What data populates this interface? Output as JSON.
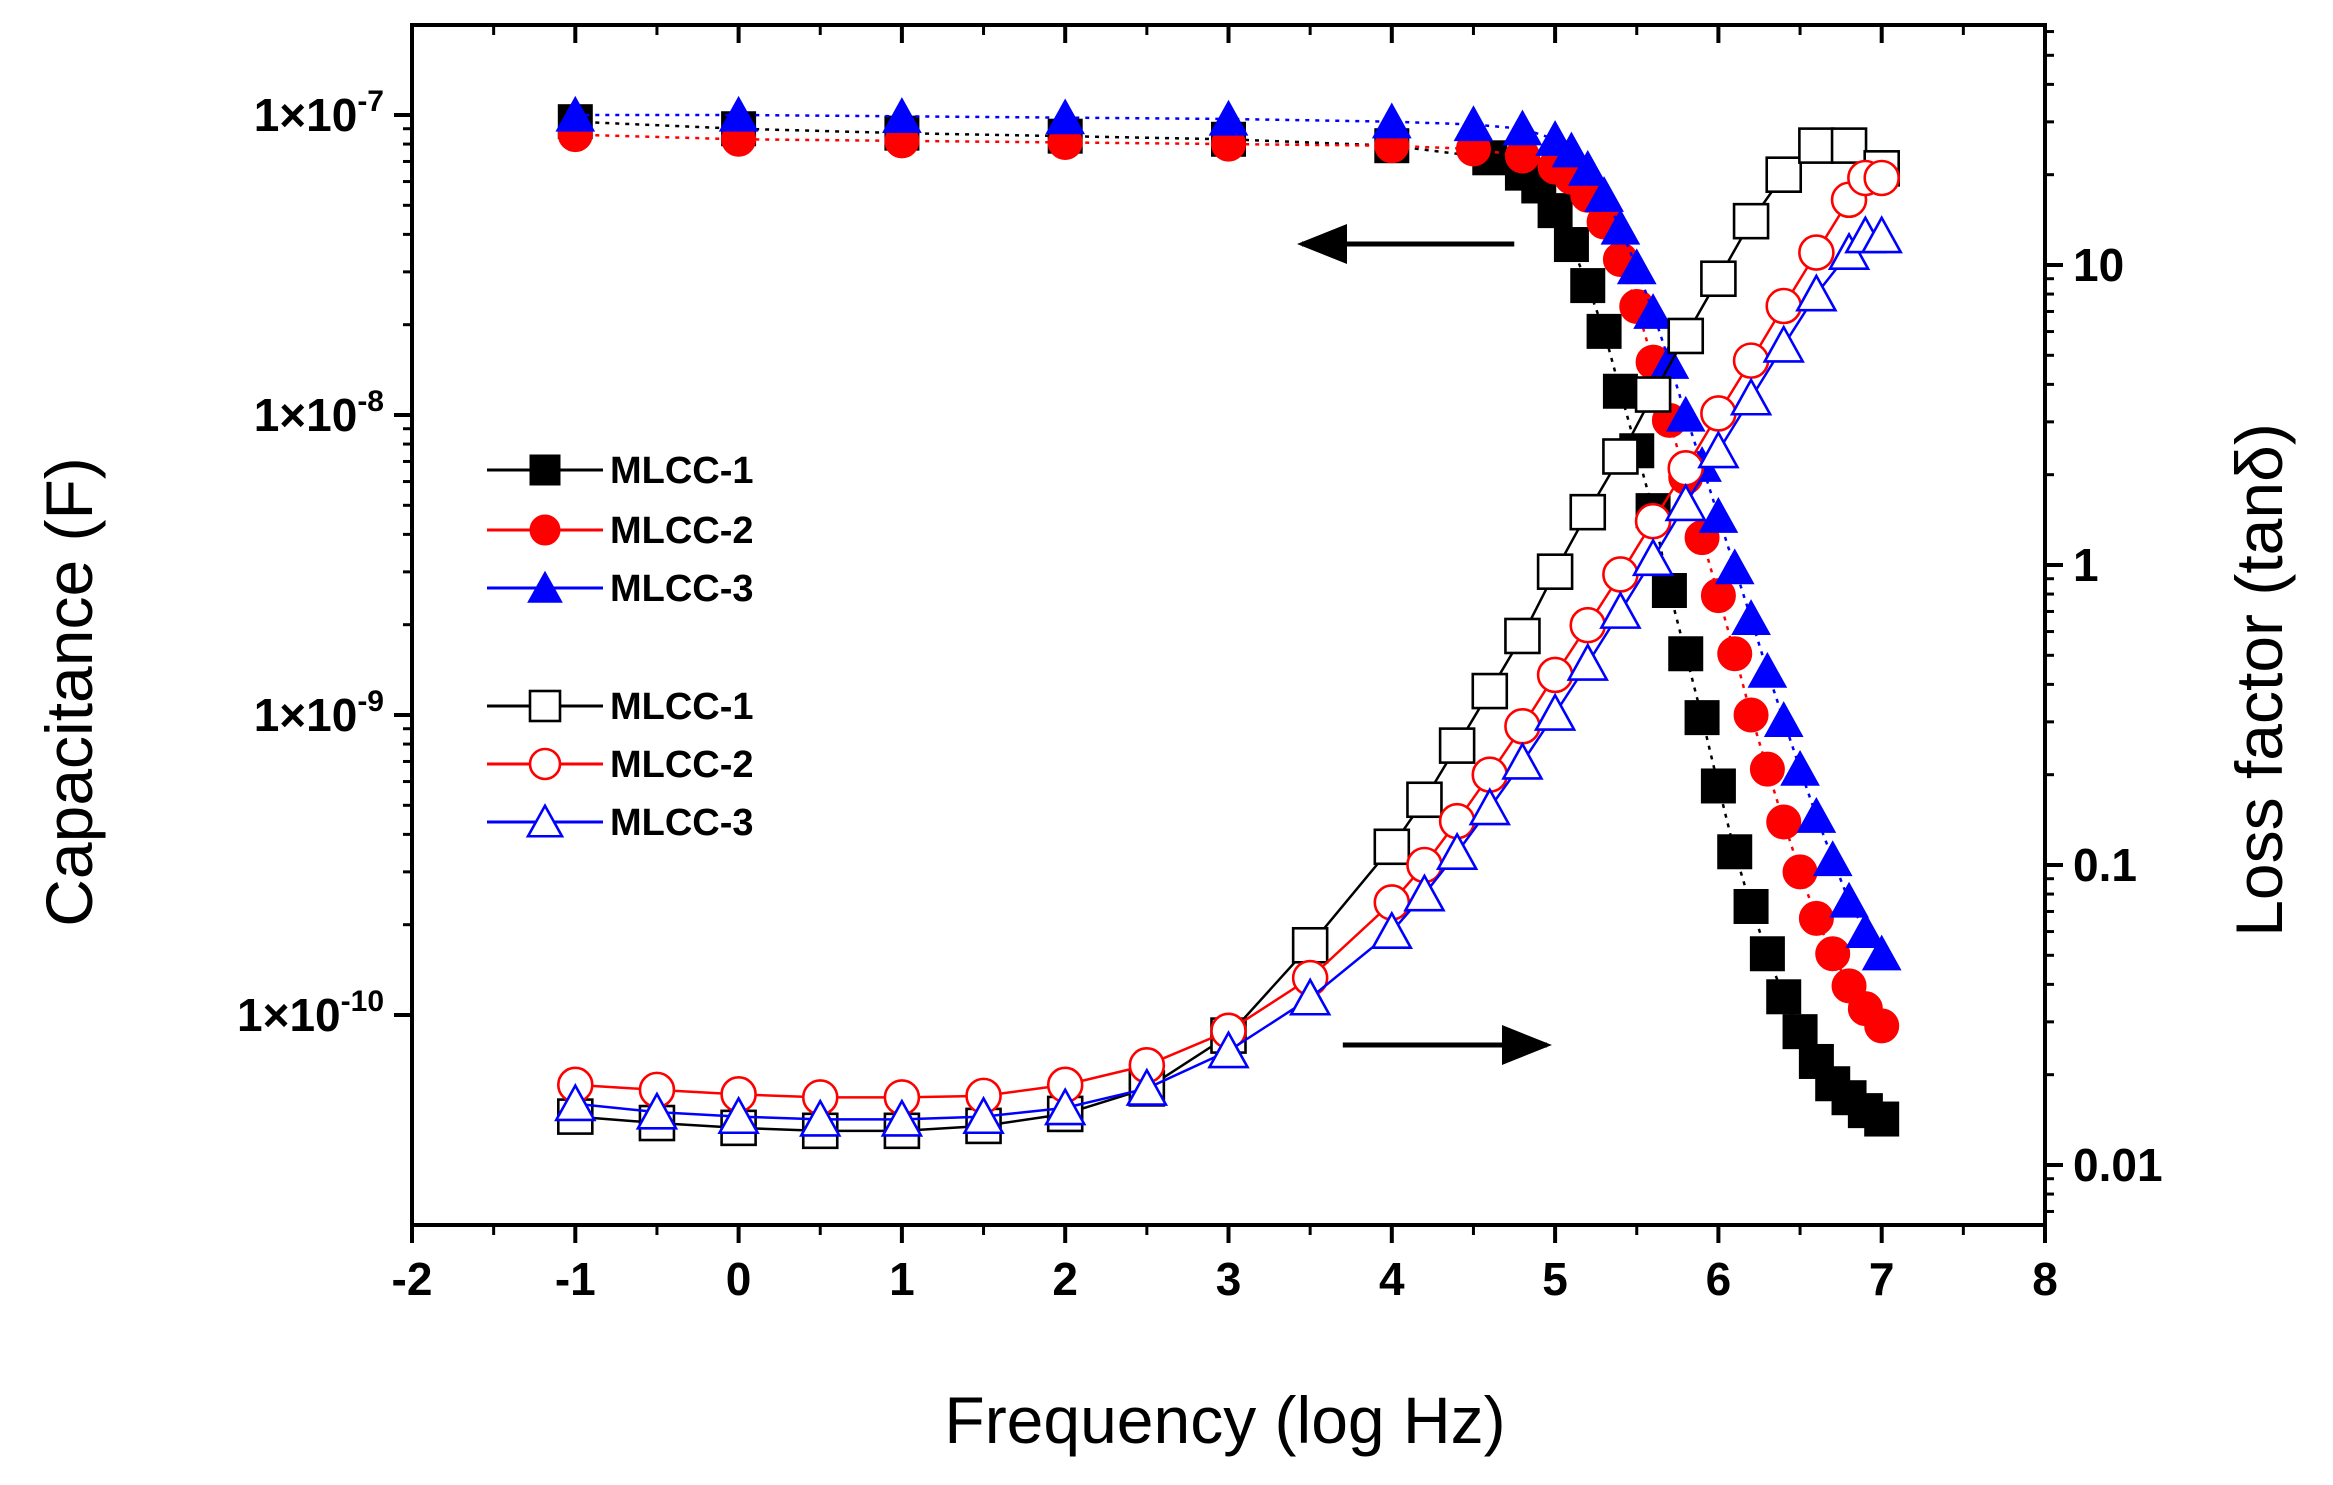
{
  "chart_data": {
    "type": "scatter",
    "title": "",
    "xlabel": "Frequency (log Hz)",
    "ylabel_left": "Capacitance (F)",
    "ylabel_right": "Loss factor (tanδ)",
    "xlim": [
      -2,
      8
    ],
    "xticks": [
      -2,
      -1,
      0,
      1,
      2,
      3,
      4,
      5,
      6,
      7,
      8
    ],
    "ylim_left_log10": [
      -10.7,
      -6.7
    ],
    "ylim_right_log10": [
      -2.2,
      1.8
    ],
    "y_left_ticks": [
      {
        "exp": -7,
        "label": "1×10",
        "sup": "-7"
      },
      {
        "exp": -8,
        "label": "1×10",
        "sup": "-8"
      },
      {
        "exp": -9,
        "label": "1×10",
        "sup": "-9"
      },
      {
        "exp": -10,
        "label": "1×10",
        "sup": "-10"
      }
    ],
    "y_right_ticks": [
      {
        "exp": 1,
        "label": "10"
      },
      {
        "exp": 0,
        "label": "1"
      },
      {
        "exp": -1,
        "label": "0.1"
      },
      {
        "exp": -2,
        "label": "0.01"
      }
    ],
    "legend": {
      "location": "middle-left",
      "entries": [
        {
          "label": "MLCC-1",
          "series": "cap_mlcc1"
        },
        {
          "label": "MLCC-2",
          "series": "cap_mlcc2"
        },
        {
          "label": "MLCC-3",
          "series": "cap_mlcc3"
        },
        {
          "label": "MLCC-1",
          "series": "loss_mlcc1"
        },
        {
          "label": "MLCC-2",
          "series": "loss_mlcc2"
        },
        {
          "label": "MLCC-3",
          "series": "loss_mlcc3"
        }
      ]
    },
    "annotations": [
      {
        "type": "arrow",
        "direction": "left",
        "meaning": "capacitance curves use left axis",
        "from": [
          4.75,
          -7.43
        ],
        "to": [
          3.45,
          -7.43
        ]
      },
      {
        "type": "arrow",
        "direction": "right",
        "meaning": "loss curves use right axis",
        "from": [
          3.7,
          -10.1
        ],
        "to": [
          4.95,
          -10.1
        ]
      }
    ],
    "series": [
      {
        "id": "cap_mlcc1",
        "name": "MLCC-1",
        "axis": "left",
        "marker": "square",
        "filled": true,
        "color": "#000000",
        "x": [
          -1,
          0,
          1,
          2,
          3,
          4,
          4.6,
          4.8,
          4.9,
          5.0,
          5.1,
          5.2,
          5.3,
          5.4,
          5.5,
          5.6,
          5.7,
          5.8,
          5.9,
          6.0,
          6.1,
          6.2,
          6.3,
          6.4,
          6.5,
          6.6,
          6.7,
          6.8,
          6.9,
          7.0
        ],
        "y": [
          9.5e-08,
          9e-08,
          8.7e-08,
          8.5e-08,
          8.3e-08,
          7.9e-08,
          7.2e-08,
          6.4e-08,
          5.8e-08,
          4.8e-08,
          3.7e-08,
          2.7e-08,
          1.9e-08,
          1.2e-08,
          7.6e-09,
          4.8e-09,
          2.6e-09,
          1.6e-09,
          9.8e-10,
          5.8e-10,
          3.5e-10,
          2.3e-10,
          1.6e-10,
          1.15e-10,
          8.8e-11,
          7e-11,
          5.9e-11,
          5.3e-11,
          4.8e-11,
          4.5e-11
        ]
      },
      {
        "id": "cap_mlcc2",
        "name": "MLCC-2",
        "axis": "left",
        "marker": "circle",
        "filled": true,
        "color": "#ff0000",
        "x": [
          -1,
          0,
          1,
          2,
          3,
          4,
          4.5,
          4.8,
          5.0,
          5.1,
          5.2,
          5.3,
          5.4,
          5.5,
          5.6,
          5.7,
          5.8,
          5.9,
          6.0,
          6.1,
          6.2,
          6.3,
          6.4,
          6.5,
          6.6,
          6.7,
          6.8,
          6.9,
          7.0
        ],
        "y": [
          8.6e-08,
          8.3e-08,
          8.2e-08,
          8.1e-08,
          8e-08,
          7.9e-08,
          7.7e-08,
          7.3e-08,
          6.7e-08,
          6.2e-08,
          5.4e-08,
          4.4e-08,
          3.3e-08,
          2.3e-08,
          1.5e-08,
          9.6e-09,
          6.2e-09,
          3.9e-09,
          2.5e-09,
          1.6e-09,
          1e-09,
          6.6e-10,
          4.4e-10,
          3e-10,
          2.1e-10,
          1.6e-10,
          1.25e-10,
          1.05e-10,
          9.2e-11
        ]
      },
      {
        "id": "cap_mlcc3",
        "name": "MLCC-3",
        "axis": "left",
        "marker": "triangle",
        "filled": true,
        "color": "#0000ff",
        "x": [
          -1,
          0,
          1,
          2,
          3,
          4,
          4.5,
          4.8,
          5.0,
          5.1,
          5.2,
          5.3,
          5.4,
          5.5,
          5.6,
          5.7,
          5.8,
          5.9,
          6.0,
          6.1,
          6.2,
          6.3,
          6.4,
          6.5,
          6.6,
          6.7,
          6.8,
          6.9,
          7.0
        ],
        "y": [
          1e-07,
          1e-07,
          9.9e-08,
          9.8e-08,
          9.7e-08,
          9.5e-08,
          9.3e-08,
          9e-08,
          8.3e-08,
          7.6e-08,
          6.6e-08,
          5.4e-08,
          4.2e-08,
          3.1e-08,
          2.2e-08,
          1.5e-08,
          1e-08,
          6.8e-09,
          4.6e-09,
          3.1e-09,
          2.1e-09,
          1.4e-09,
          9.6e-10,
          6.6e-10,
          4.6e-10,
          3.3e-10,
          2.4e-10,
          1.9e-10,
          1.6e-10
        ]
      },
      {
        "id": "loss_mlcc1",
        "name": "MLCC-1",
        "axis": "right",
        "marker": "square",
        "filled": false,
        "color": "#000000",
        "x": [
          -1,
          -0.5,
          0,
          0.5,
          1,
          1.5,
          2,
          2.5,
          3,
          3.5,
          4,
          4.2,
          4.4,
          4.6,
          4.8,
          5.0,
          5.2,
          5.4,
          5.6,
          5.8,
          6.0,
          6.2,
          6.4,
          6.6,
          6.8,
          7.0
        ],
        "y": [
          0.0145,
          0.0138,
          0.0133,
          0.013,
          0.013,
          0.0135,
          0.0148,
          0.018,
          0.027,
          0.054,
          0.115,
          0.165,
          0.25,
          0.38,
          0.58,
          0.95,
          1.5,
          2.3,
          3.7,
          5.8,
          9.0,
          14.0,
          20.0,
          25.0,
          25.0,
          21.0
        ]
      },
      {
        "id": "loss_mlcc2",
        "name": "MLCC-2",
        "axis": "right",
        "marker": "circle",
        "filled": false,
        "color": "#ff0000",
        "x": [
          -1,
          -0.5,
          0,
          0.5,
          1,
          1.5,
          2,
          2.5,
          3,
          3.5,
          4,
          4.2,
          4.4,
          4.6,
          4.8,
          5.0,
          5.2,
          5.4,
          5.6,
          5.8,
          6.0,
          6.2,
          6.4,
          6.6,
          6.8,
          6.9,
          7.0
        ],
        "y": [
          0.0185,
          0.0178,
          0.0172,
          0.0168,
          0.0168,
          0.017,
          0.0185,
          0.0215,
          0.028,
          0.042,
          0.075,
          0.1,
          0.14,
          0.2,
          0.29,
          0.43,
          0.63,
          0.93,
          1.4,
          2.1,
          3.2,
          4.8,
          7.3,
          11.0,
          16.5,
          19.5,
          19.5
        ]
      },
      {
        "id": "loss_mlcc3",
        "name": "MLCC-3",
        "axis": "right",
        "marker": "triangle",
        "filled": false,
        "color": "#0000ff",
        "x": [
          -1,
          -0.5,
          0,
          0.5,
          1,
          1.5,
          2,
          2.5,
          3,
          3.5,
          4,
          4.2,
          4.4,
          4.6,
          4.8,
          5.0,
          5.2,
          5.4,
          5.6,
          5.8,
          6.0,
          6.2,
          6.4,
          6.6,
          6.8,
          6.9,
          7.0
        ],
        "y": [
          0.016,
          0.015,
          0.0145,
          0.0142,
          0.0142,
          0.0145,
          0.0155,
          0.018,
          0.024,
          0.036,
          0.06,
          0.08,
          0.11,
          0.155,
          0.22,
          0.32,
          0.47,
          0.7,
          1.05,
          1.6,
          2.4,
          3.6,
          5.4,
          8.0,
          11.0,
          12.5,
          12.5
        ]
      }
    ]
  }
}
